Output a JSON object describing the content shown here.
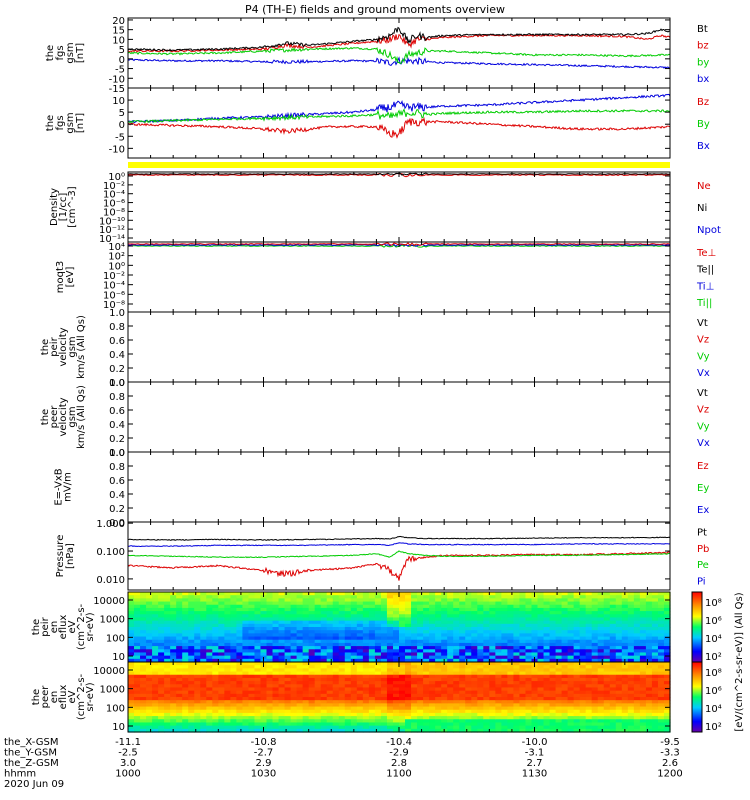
{
  "title": "P4 (TH-E) fields and ground moments overview",
  "colors": {
    "black": "#000000",
    "red": "#dd0000",
    "green": "#00cc00",
    "blue": "#0000dd",
    "yellow": "#ffff00"
  },
  "chart_data": [
    {
      "type": "line",
      "ylabel": [
        "the",
        "fgs",
        "gsm",
        "[nT]"
      ],
      "yticks": [
        "20",
        "15",
        "10",
        "5",
        "0",
        "-5",
        "-10",
        "-15"
      ],
      "ylim": [
        -15,
        21
      ],
      "legend": [
        {
          "name": "Bt",
          "color": "#000000"
        },
        {
          "name": "bz",
          "color": "#dd0000"
        },
        {
          "name": "by",
          "color": "#00cc00"
        },
        {
          "name": "bx",
          "color": "#0000dd"
        }
      ],
      "series": [
        {
          "name": "Bt",
          "color": "#000000",
          "t": [
            0,
            10,
            20,
            30,
            35,
            40,
            45,
            55,
            58,
            60,
            62,
            64,
            66,
            70,
            80,
            90,
            100,
            110,
            115,
            118,
            120
          ],
          "y": [
            5,
            4.5,
            5,
            6,
            8,
            7,
            8,
            10,
            12,
            16,
            9,
            12,
            11,
            12,
            12.5,
            12.5,
            12.5,
            12.5,
            13,
            15,
            14
          ]
        },
        {
          "name": "bz",
          "color": "#dd0000",
          "t": [
            0,
            10,
            20,
            30,
            35,
            40,
            45,
            55,
            58,
            60,
            62,
            64,
            66,
            70,
            80,
            90,
            100,
            110,
            115,
            118,
            120
          ],
          "y": [
            4,
            4,
            4.5,
            5,
            7,
            6,
            7,
            9,
            10,
            12,
            7,
            10,
            10,
            11,
            12,
            12,
            12,
            11.5,
            10,
            12,
            11
          ]
        },
        {
          "name": "by",
          "color": "#00cc00",
          "t": [
            0,
            10,
            20,
            30,
            40,
            50,
            55,
            58,
            60,
            62,
            66,
            70,
            80,
            90,
            100,
            110,
            120
          ],
          "y": [
            3,
            2.5,
            3,
            4,
            5,
            5.5,
            5,
            2,
            -2,
            2,
            4,
            4,
            3,
            2,
            2,
            1.5,
            2
          ]
        },
        {
          "name": "bx",
          "color": "#0000dd",
          "t": [
            0,
            10,
            20,
            30,
            40,
            50,
            55,
            58,
            60,
            62,
            66,
            70,
            80,
            90,
            100,
            110,
            120
          ],
          "y": [
            -0.5,
            -1,
            -1,
            -1.5,
            -1.5,
            -1,
            -1.2,
            -2,
            -1,
            -1,
            -1.5,
            -2,
            -2.5,
            -3,
            -3.5,
            -4,
            -4.5
          ]
        }
      ]
    },
    {
      "type": "line",
      "ylabel": [
        "the",
        "fgs",
        "gsm",
        "[nT]"
      ],
      "yticks": [
        "10",
        "5",
        "0",
        "-5",
        "-10"
      ],
      "ylim": [
        -14,
        15
      ],
      "legend": [
        {
          "name": "Bz",
          "color": "#dd0000"
        },
        {
          "name": "By",
          "color": "#00cc00"
        },
        {
          "name": "Bx",
          "color": "#0000dd"
        }
      ],
      "series": [
        {
          "name": "Bz",
          "color": "#dd0000",
          "t": [
            0,
            10,
            20,
            30,
            35,
            40,
            45,
            55,
            58,
            60,
            62,
            66,
            70,
            80,
            90,
            100,
            110,
            120
          ],
          "y": [
            0,
            -0.5,
            -1,
            -2,
            -3,
            -2,
            -1,
            -1,
            -4,
            -4,
            1,
            1,
            1,
            0,
            -1,
            -2,
            -2,
            -1
          ]
        },
        {
          "name": "By",
          "color": "#00cc00",
          "t": [
            0,
            10,
            20,
            30,
            40,
            50,
            55,
            58,
            60,
            62,
            66,
            70,
            80,
            90,
            100,
            110,
            120
          ],
          "y": [
            1,
            1.5,
            2,
            2.5,
            3,
            3.5,
            4,
            3,
            4,
            5,
            4,
            4.5,
            5,
            5,
            5.5,
            5.5,
            5.5
          ]
        },
        {
          "name": "Bx",
          "color": "#0000dd",
          "t": [
            0,
            10,
            20,
            30,
            40,
            50,
            55,
            58,
            60,
            62,
            66,
            70,
            80,
            90,
            100,
            110,
            120
          ],
          "y": [
            1,
            1.5,
            2.5,
            3,
            4,
            5,
            6,
            7,
            8,
            7,
            7,
            7.5,
            8,
            9,
            10,
            11,
            12
          ]
        }
      ]
    },
    {
      "type": "line",
      "ylabel": [
        "Density",
        "[1/cc]",
        "[cm^-3]"
      ],
      "yticks": [
        "10⁰",
        "10⁻²",
        "10⁻⁴",
        "10⁻⁶",
        "10⁻⁸",
        "10⁻¹⁰",
        "10⁻¹²",
        "10⁻¹⁴"
      ],
      "legend": [
        {
          "name": "Ne",
          "color": "#dd0000"
        },
        {
          "name": "Ni",
          "color": "#000000"
        },
        {
          "name": "Npot",
          "color": "#0000dd"
        }
      ]
    },
    {
      "type": "line",
      "ylabel": [
        "moqt3",
        "[eV]"
      ],
      "yticks": [
        "10⁴",
        "10²",
        "10⁰",
        "10⁻²",
        "10⁻⁴",
        "10⁻⁶",
        "10⁻⁸"
      ],
      "legend": [
        {
          "name": "Te⊥",
          "color": "#dd0000"
        },
        {
          "name": "Te||",
          "color": "#000000"
        },
        {
          "name": "Ti⊥",
          "color": "#0000dd"
        },
        {
          "name": "Ti||",
          "color": "#00cc00"
        }
      ]
    },
    {
      "type": "line",
      "ylabel": [
        "the",
        "peir",
        "velocity",
        "gsm",
        "km/s (All Qs)"
      ],
      "yticks": [
        "1.0",
        "0.8",
        "0.6",
        "0.4",
        "0.2",
        "0.0"
      ],
      "ylim": [
        0,
        1
      ],
      "legend": [
        {
          "name": "Vt",
          "color": "#000000"
        },
        {
          "name": "Vz",
          "color": "#dd0000"
        },
        {
          "name": "Vy",
          "color": "#00cc00"
        },
        {
          "name": "Vx",
          "color": "#0000dd"
        }
      ]
    },
    {
      "type": "line",
      "ylabel": [
        "the",
        "peer",
        "velocity",
        "gsm",
        "km/s (All Qs)"
      ],
      "yticks": [
        "1.0",
        "0.8",
        "0.6",
        "0.4",
        "0.2",
        "0.0"
      ],
      "ylim": [
        0,
        1
      ],
      "legend": [
        {
          "name": "Vt",
          "color": "#000000"
        },
        {
          "name": "Vz",
          "color": "#dd0000"
        },
        {
          "name": "Vy",
          "color": "#00cc00"
        },
        {
          "name": "Vx",
          "color": "#0000dd"
        }
      ]
    },
    {
      "type": "line",
      "ylabel": [
        "E=-VxB",
        "mV/m"
      ],
      "yticks": [
        "1.0",
        "0.8",
        "0.6",
        "0.4",
        "0.2",
        "0.0"
      ],
      "ylim": [
        0,
        1
      ],
      "legend": [
        {
          "name": "Ez",
          "color": "#dd0000"
        },
        {
          "name": "Ey",
          "color": "#00cc00"
        },
        {
          "name": "Ex",
          "color": "#0000dd"
        }
      ]
    },
    {
      "type": "line",
      "ylabel": [
        "Pressure",
        "[nPa]"
      ],
      "yticks": [
        "1.000",
        "0.100",
        "0.010"
      ],
      "yscale": "log",
      "legend": [
        {
          "name": "Pt",
          "color": "#000000"
        },
        {
          "name": "Pb",
          "color": "#dd0000"
        },
        {
          "name": "Pe",
          "color": "#00cc00"
        },
        {
          "name": "Pi",
          "color": "#0000dd"
        }
      ]
    },
    {
      "type": "heatmap",
      "ylabel": [
        "the",
        "peir",
        "en",
        "eflux",
        "eV",
        "(cm^2-s-",
        "sr-eV)"
      ],
      "yticks": [
        "10000",
        "1000",
        "100",
        "10"
      ],
      "colorbar": {
        "label": "[eV/(cm^2-s-sr-eV)] (All Qs)",
        "ticks": [
          "10⁸",
          "10⁶",
          "10⁴",
          "10²"
        ]
      }
    },
    {
      "type": "heatmap",
      "ylabel": [
        "the",
        "peer",
        "en",
        "eflux",
        "eV",
        "(cm^2-s-",
        "sr-eV)"
      ],
      "yticks": [
        "10000",
        "1000",
        "100",
        "10"
      ],
      "colorbar": {
        "label": "[eV/(cm^2-s-sr-eV)]",
        "ticks": [
          "10⁸",
          "10⁶",
          "10⁴",
          "10²"
        ]
      }
    }
  ],
  "orbit": {
    "rows": [
      {
        "label": "the_X-GSM",
        "values": [
          "-11.1",
          "-10.8",
          "-10.4",
          "-10.0",
          "-9.5"
        ]
      },
      {
        "label": "the_Y-GSM",
        "values": [
          "-2.5",
          "-2.7",
          "-2.9",
          "-3.1",
          "-3.3"
        ]
      },
      {
        "label": "the_Z-GSM",
        "values": [
          "3.0",
          "2.9",
          "2.8",
          "2.7",
          "2.6"
        ]
      },
      {
        "label": "hhmm",
        "values": [
          "1000",
          "1030",
          "1100",
          "1130",
          "1200"
        ]
      }
    ],
    "date": "2020 Jun 09"
  }
}
